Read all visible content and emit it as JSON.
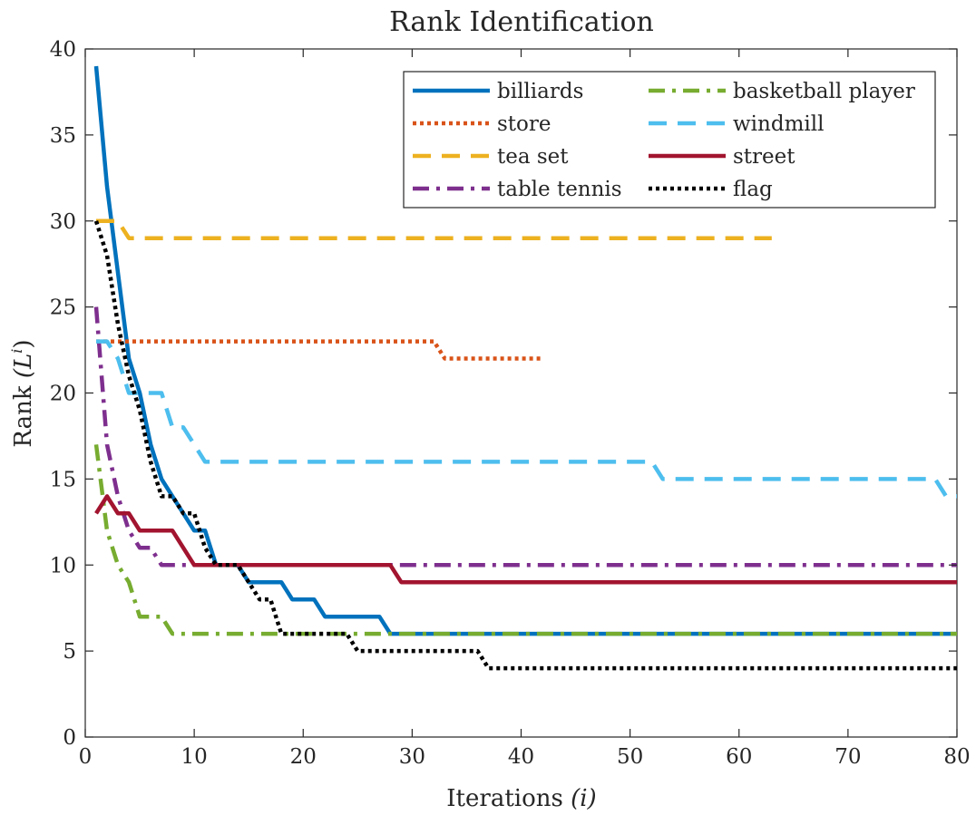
{
  "chart_data": {
    "type": "line",
    "title": "Rank Identification",
    "xlabel": "Iterations",
    "xlabel_var": "(i)",
    "ylabel": "Rank",
    "ylabel_var": "(L",
    "ylabel_sup": "i",
    "ylabel_close": ")",
    "xlim": [
      0,
      80
    ],
    "ylim": [
      0,
      40
    ],
    "xticks": [
      0,
      10,
      20,
      30,
      40,
      50,
      60,
      70,
      80
    ],
    "yticks": [
      0,
      5,
      10,
      15,
      20,
      25,
      30,
      35,
      40
    ],
    "grid": false,
    "legend_position": "top-right",
    "legend_columns": 2,
    "series": [
      {
        "name": "billiards",
        "color": "#0072BD",
        "style": "solid",
        "points": [
          [
            1,
            39
          ],
          [
            2,
            32
          ],
          [
            3,
            27
          ],
          [
            4,
            22
          ],
          [
            5,
            20
          ],
          [
            6,
            17
          ],
          [
            7,
            15
          ],
          [
            8,
            14
          ],
          [
            9,
            13
          ],
          [
            10,
            12
          ],
          [
            11,
            12
          ],
          [
            12,
            10
          ],
          [
            13,
            10
          ],
          [
            14,
            10
          ],
          [
            15,
            9
          ],
          [
            16,
            9
          ],
          [
            17,
            9
          ],
          [
            18,
            9
          ],
          [
            19,
            8
          ],
          [
            20,
            8
          ],
          [
            21,
            8
          ],
          [
            22,
            7
          ],
          [
            23,
            7
          ],
          [
            24,
            7
          ],
          [
            25,
            7
          ],
          [
            26,
            7
          ],
          [
            27,
            7
          ],
          [
            28,
            6
          ],
          [
            80,
            6
          ]
        ]
      },
      {
        "name": "store",
        "color": "#D95319",
        "style": "dotted",
        "points": [
          [
            1,
            23
          ],
          [
            32,
            23
          ],
          [
            33,
            22
          ],
          [
            42,
            22
          ]
        ]
      },
      {
        "name": "tea set",
        "color": "#EDB120",
        "style": "dashed",
        "points": [
          [
            1,
            30
          ],
          [
            3,
            30
          ],
          [
            4,
            29
          ],
          [
            63,
            29
          ]
        ]
      },
      {
        "name": "table tennis",
        "color": "#7E2F8E",
        "style": "dashdot",
        "points": [
          [
            1,
            25
          ],
          [
            2,
            17
          ],
          [
            3,
            14
          ],
          [
            4,
            12
          ],
          [
            5,
            11
          ],
          [
            6,
            11
          ],
          [
            7,
            10
          ],
          [
            80,
            10
          ]
        ]
      },
      {
        "name": "basketball player",
        "color": "#77AC30",
        "style": "dashdot",
        "points": [
          [
            1,
            17
          ],
          [
            2,
            12
          ],
          [
            3,
            10
          ],
          [
            4,
            9
          ],
          [
            5,
            7
          ],
          [
            6,
            7
          ],
          [
            7,
            7
          ],
          [
            8,
            6
          ],
          [
            80,
            6
          ]
        ]
      },
      {
        "name": "windmill",
        "color": "#4DBEEE",
        "style": "dashed",
        "points": [
          [
            1,
            23
          ],
          [
            2,
            23
          ],
          [
            3,
            22
          ],
          [
            4,
            20
          ],
          [
            5,
            20
          ],
          [
            6,
            20
          ],
          [
            7,
            20
          ],
          [
            8,
            18
          ],
          [
            9,
            18
          ],
          [
            10,
            17
          ],
          [
            11,
            16
          ],
          [
            52,
            16
          ],
          [
            53,
            15
          ],
          [
            78,
            15
          ],
          [
            79,
            14
          ],
          [
            80,
            14
          ]
        ]
      },
      {
        "name": "street",
        "color": "#A2142F",
        "style": "solid",
        "points": [
          [
            1,
            13
          ],
          [
            2,
            14
          ],
          [
            3,
            13
          ],
          [
            4,
            13
          ],
          [
            5,
            12
          ],
          [
            6,
            12
          ],
          [
            7,
            12
          ],
          [
            8,
            12
          ],
          [
            9,
            11
          ],
          [
            10,
            10
          ],
          [
            11,
            10
          ],
          [
            28,
            10
          ],
          [
            29,
            9
          ],
          [
            80,
            9
          ]
        ]
      },
      {
        "name": "flag",
        "color": "#000000",
        "style": "dotted",
        "points": [
          [
            1,
            30
          ],
          [
            2,
            28
          ],
          [
            3,
            24
          ],
          [
            4,
            21
          ],
          [
            5,
            19
          ],
          [
            6,
            16
          ],
          [
            7,
            14
          ],
          [
            8,
            14
          ],
          [
            9,
            13
          ],
          [
            10,
            13
          ],
          [
            11,
            11
          ],
          [
            12,
            10
          ],
          [
            13,
            10
          ],
          [
            14,
            10
          ],
          [
            15,
            9
          ],
          [
            16,
            8
          ],
          [
            17,
            8
          ],
          [
            18,
            6
          ],
          [
            24,
            6
          ],
          [
            25,
            5
          ],
          [
            36,
            5
          ],
          [
            37,
            4
          ],
          [
            80,
            4
          ]
        ]
      }
    ]
  }
}
